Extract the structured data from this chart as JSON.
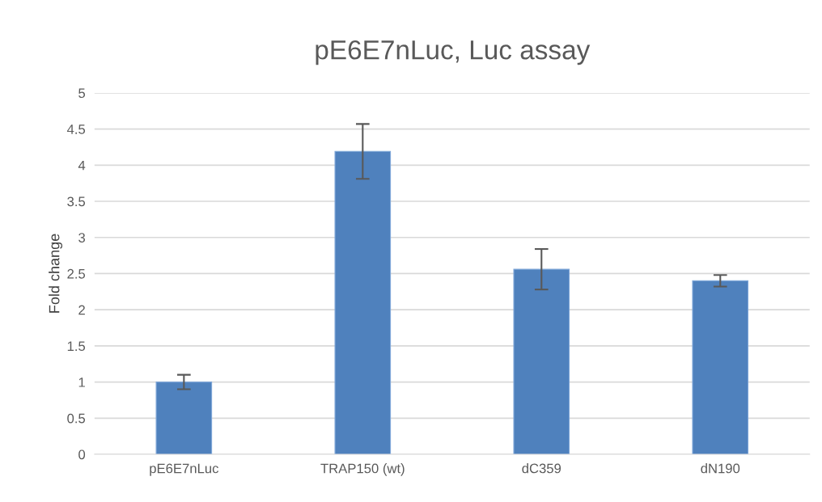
{
  "chart_data": {
    "type": "bar",
    "title": "pE6E7nLuc, Luc assay",
    "ylabel": "Fold change",
    "categories": [
      "pE6E7nLuc",
      "TRAP150 (wt)",
      "dC359",
      "dN190"
    ],
    "values": [
      1.0,
      4.19,
      2.56,
      2.4
    ],
    "errors": [
      0.1,
      0.38,
      0.28,
      0.08
    ],
    "color": "#4f81bd",
    "ylim": [
      0,
      5
    ],
    "yticks": [
      0,
      0.5,
      1,
      1.5,
      2,
      2.5,
      3,
      3.5,
      4,
      4.5,
      5
    ],
    "grid": "y"
  }
}
